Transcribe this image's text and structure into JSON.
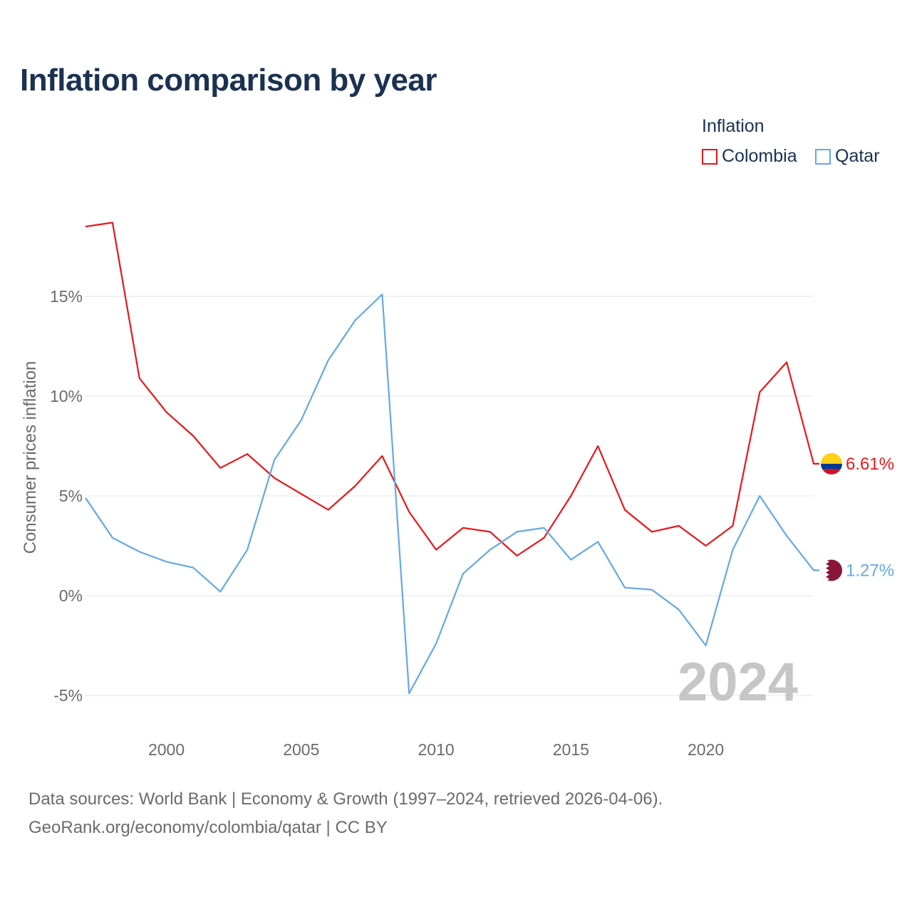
{
  "title": "Inflation comparison by year",
  "legend": {
    "title": "Inflation",
    "items": [
      {
        "label": "Colombia",
        "color": "#e8171a"
      },
      {
        "label": "Qatar",
        "color": "#64a8e6"
      }
    ]
  },
  "chart_data": {
    "type": "line",
    "title": "Inflation comparison by year",
    "xlabel": "",
    "ylabel": "Consumer prices inflation",
    "x": [
      1997,
      1998,
      1999,
      2000,
      2001,
      2002,
      2003,
      2004,
      2005,
      2006,
      2007,
      2008,
      2009,
      2010,
      2011,
      2012,
      2013,
      2014,
      2015,
      2016,
      2017,
      2018,
      2019,
      2020,
      2021,
      2022,
      2023,
      2024
    ],
    "xticks": [
      2000,
      2005,
      2010,
      2015,
      2020
    ],
    "xtick_labels": [
      "2000",
      "2005",
      "2010",
      "2015",
      "2020"
    ],
    "yticks": [
      -5,
      0,
      5,
      10,
      15
    ],
    "ytick_labels": [
      "-5%",
      "0%",
      "5%",
      "10%",
      "15%"
    ],
    "ylim": [
      -6.5,
      20
    ],
    "xlim": [
      1997,
      2024
    ],
    "grid": true,
    "series": [
      {
        "name": "Colombia",
        "color": "#e8171a",
        "values": [
          18.5,
          18.7,
          10.9,
          9.2,
          8.0,
          6.4,
          7.1,
          5.9,
          5.1,
          4.3,
          5.5,
          7.0,
          4.2,
          2.3,
          3.4,
          3.2,
          2.0,
          2.9,
          5.0,
          7.5,
          4.3,
          3.2,
          3.5,
          2.5,
          3.5,
          10.2,
          11.7,
          6.61
        ],
        "end_label": "6.61%"
      },
      {
        "name": "Qatar",
        "color": "#64a8e6",
        "values": [
          4.9,
          2.9,
          2.2,
          1.7,
          1.4,
          0.2,
          2.3,
          6.8,
          8.8,
          11.8,
          13.8,
          15.1,
          -4.9,
          -2.4,
          1.1,
          2.3,
          3.2,
          3.4,
          1.8,
          2.7,
          0.4,
          0.3,
          -0.7,
          -2.5,
          2.3,
          5.0,
          3.0,
          1.27
        ],
        "end_label": "1.27%"
      }
    ],
    "year_label": "2024"
  },
  "flags": [
    {
      "country": "Colombia",
      "colors": [
        "#fcd116",
        "#003893",
        "#ce1126"
      ]
    },
    {
      "country": "Qatar",
      "colors": [
        "#ffffff",
        "#8a1538"
      ]
    }
  ],
  "footer": {
    "line1": "Data sources: World Bank | Economy & Growth (1997–2024, retrieved 2026-04-06).",
    "line2": "GeoRank.org/economy/colombia/qatar | CC BY"
  }
}
